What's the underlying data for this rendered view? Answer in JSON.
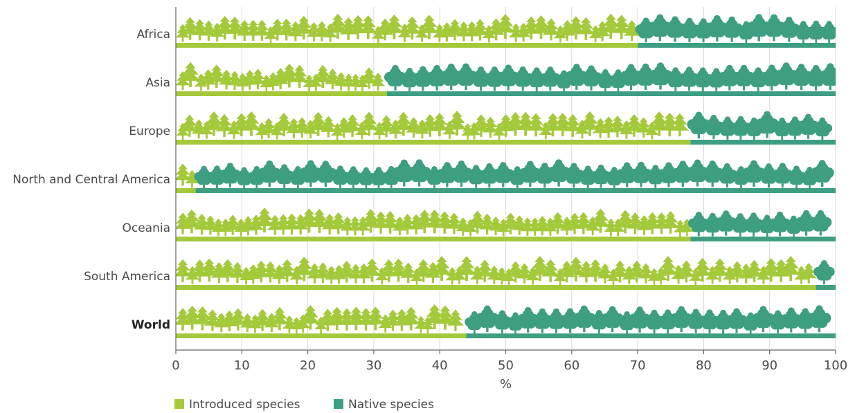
{
  "chart_data": {
    "type": "bar",
    "orientation": "horizontal",
    "stacked": true,
    "categories": [
      "Africa",
      "Asia",
      "Europe",
      "North and Central America",
      "Oceania",
      "South America",
      "World"
    ],
    "bold_categories": [
      "World"
    ],
    "series": [
      {
        "name": "Introduced species",
        "color": "#a4c93b",
        "icon": "conifer-tree-icon",
        "values": [
          70,
          32,
          78,
          3,
          78,
          97,
          44
        ]
      },
      {
        "name": "Native species",
        "color": "#3e9e82",
        "icon": "broadleaf-tree-icon",
        "values": [
          30,
          68,
          22,
          97,
          22,
          3,
          56
        ]
      }
    ],
    "xlim": [
      0,
      100
    ],
    "xticks": [
      0,
      10,
      20,
      30,
      40,
      50,
      60,
      70,
      80,
      90,
      100
    ],
    "xlabel": "%",
    "grid": "vertical",
    "legend": "bottom-left"
  }
}
